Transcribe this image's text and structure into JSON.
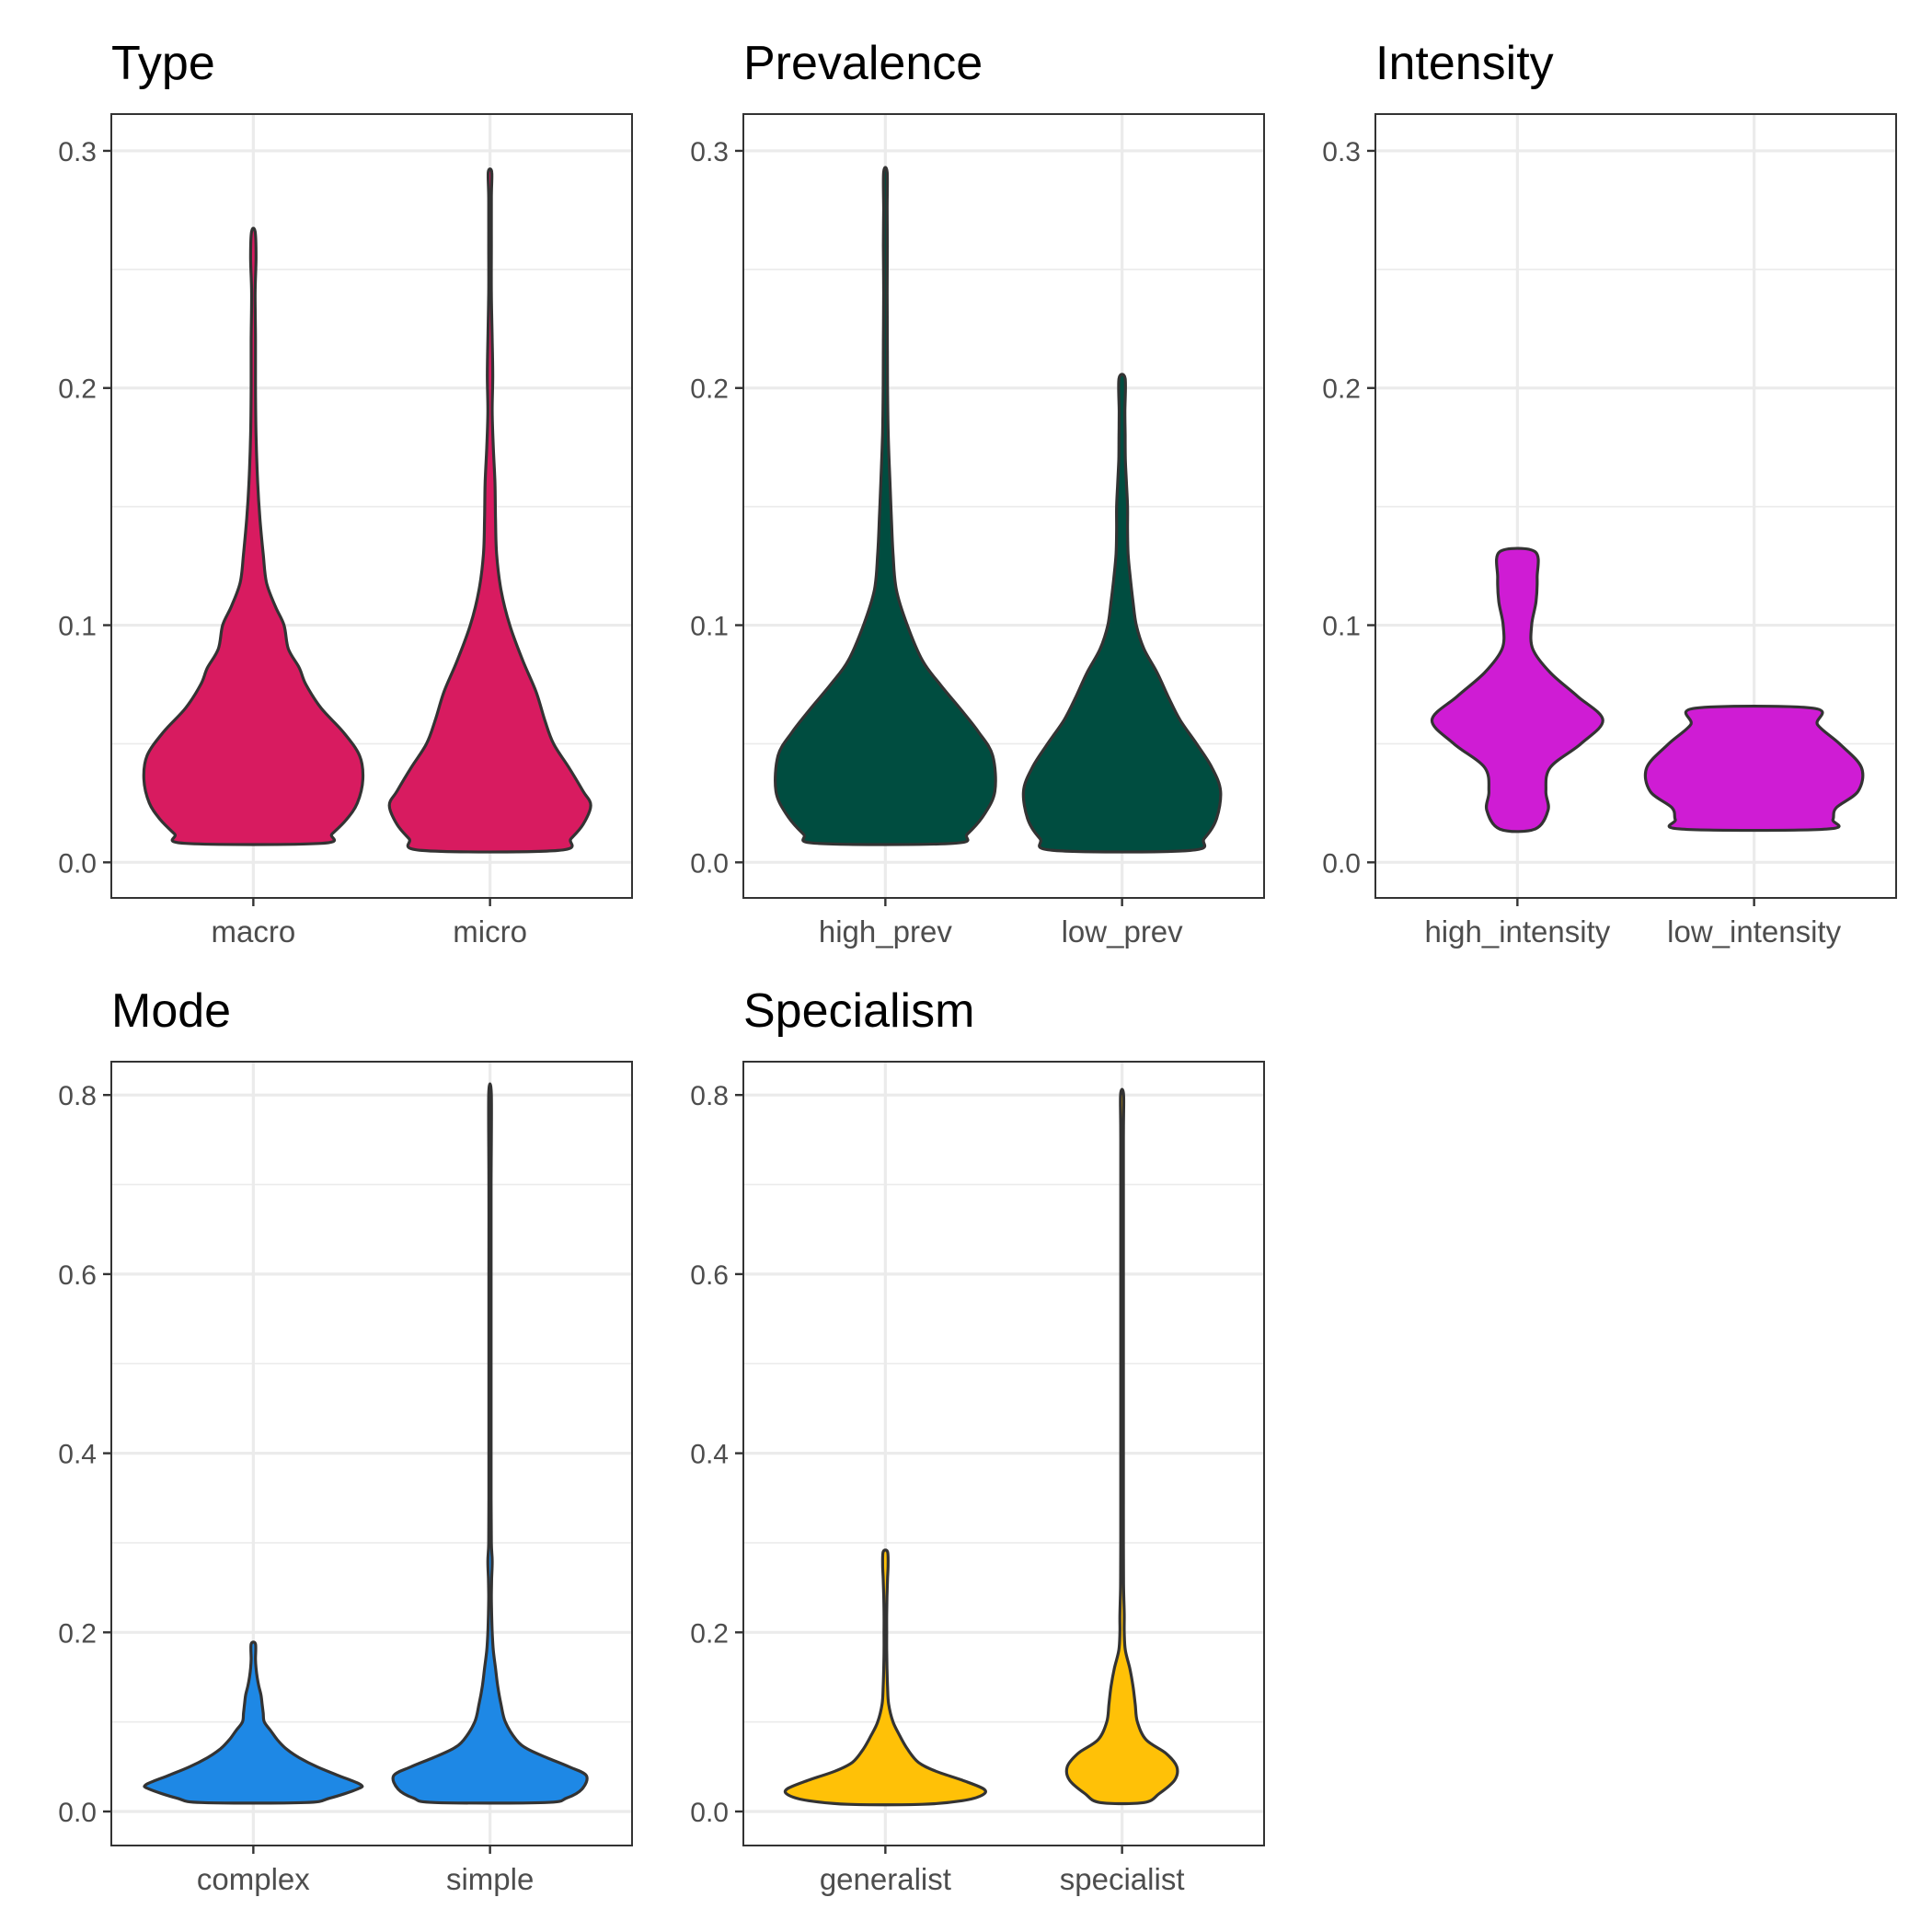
{
  "chart_data": [
    {
      "type": "violin",
      "title": "Type",
      "ylim": [
        -0.015,
        0.3155
      ],
      "yticks": [
        0.0,
        0.1,
        0.2,
        0.3
      ],
      "ytick_labels": [
        "0.0",
        "0.1",
        "0.2",
        "0.3"
      ],
      "fill": "#d81b60",
      "categories": [
        "macro",
        "micro"
      ],
      "violins": [
        {
          "name": "macro",
          "ymin": 0.008,
          "ymax": 0.266,
          "profile": [
            [
              0.008,
              0.62
            ],
            [
              0.012,
              0.72
            ],
            [
              0.018,
              0.85
            ],
            [
              0.025,
              0.95
            ],
            [
              0.035,
              1.0
            ],
            [
              0.045,
              0.97
            ],
            [
              0.055,
              0.82
            ],
            [
              0.065,
              0.62
            ],
            [
              0.075,
              0.48
            ],
            [
              0.082,
              0.42
            ],
            [
              0.09,
              0.32
            ],
            [
              0.1,
              0.28
            ],
            [
              0.108,
              0.2
            ],
            [
              0.118,
              0.12
            ],
            [
              0.13,
              0.09
            ],
            [
              0.145,
              0.06
            ],
            [
              0.16,
              0.04
            ],
            [
              0.18,
              0.025
            ],
            [
              0.2,
              0.02
            ],
            [
              0.22,
              0.02
            ],
            [
              0.24,
              0.016
            ],
            [
              0.255,
              0.025
            ],
            [
              0.266,
              0.016
            ]
          ]
        },
        {
          "name": "micro",
          "ymin": 0.005,
          "ymax": 0.291,
          "profile": [
            [
              0.005,
              0.62
            ],
            [
              0.01,
              0.74
            ],
            [
              0.016,
              0.85
            ],
            [
              0.024,
              0.92
            ],
            [
              0.03,
              0.85
            ],
            [
              0.04,
              0.72
            ],
            [
              0.05,
              0.58
            ],
            [
              0.06,
              0.5
            ],
            [
              0.072,
              0.42
            ],
            [
              0.085,
              0.3
            ],
            [
              0.1,
              0.18
            ],
            [
              0.115,
              0.1
            ],
            [
              0.13,
              0.06
            ],
            [
              0.145,
              0.05
            ],
            [
              0.16,
              0.045
            ],
            [
              0.175,
              0.03
            ],
            [
              0.19,
              0.02
            ],
            [
              0.205,
              0.025
            ],
            [
              0.22,
              0.02
            ],
            [
              0.24,
              0.012
            ],
            [
              0.26,
              0.012
            ],
            [
              0.28,
              0.012
            ],
            [
              0.291,
              0.016
            ]
          ]
        }
      ]
    },
    {
      "type": "violin",
      "title": "Prevalence",
      "ylim": [
        -0.015,
        0.3155
      ],
      "yticks": [
        0.0,
        0.1,
        0.2,
        0.3
      ],
      "ytick_labels": [
        "0.0",
        "0.1",
        "0.2",
        "0.3"
      ],
      "fill": "#004d40",
      "categories": [
        "high_prev",
        "low_prev"
      ],
      "violins": [
        {
          "name": "high_prev",
          "ymin": 0.008,
          "ymax": 0.291,
          "profile": [
            [
              0.008,
              0.62
            ],
            [
              0.012,
              0.75
            ],
            [
              0.02,
              0.9
            ],
            [
              0.03,
              1.0
            ],
            [
              0.045,
              0.98
            ],
            [
              0.055,
              0.85
            ],
            [
              0.065,
              0.68
            ],
            [
              0.075,
              0.5
            ],
            [
              0.085,
              0.34
            ],
            [
              0.1,
              0.2
            ],
            [
              0.115,
              0.1
            ],
            [
              0.13,
              0.07
            ],
            [
              0.145,
              0.055
            ],
            [
              0.16,
              0.042
            ],
            [
              0.18,
              0.026
            ],
            [
              0.2,
              0.02
            ],
            [
              0.22,
              0.018
            ],
            [
              0.24,
              0.016
            ],
            [
              0.26,
              0.018
            ],
            [
              0.275,
              0.016
            ],
            [
              0.291,
              0.016
            ]
          ]
        },
        {
          "name": "low_prev",
          "ymin": 0.005,
          "ymax": 0.204,
          "profile": [
            [
              0.005,
              0.62
            ],
            [
              0.01,
              0.75
            ],
            [
              0.018,
              0.86
            ],
            [
              0.03,
              0.9
            ],
            [
              0.04,
              0.82
            ],
            [
              0.05,
              0.68
            ],
            [
              0.06,
              0.53
            ],
            [
              0.07,
              0.42
            ],
            [
              0.08,
              0.32
            ],
            [
              0.09,
              0.2
            ],
            [
              0.1,
              0.13
            ],
            [
              0.11,
              0.1
            ],
            [
              0.12,
              0.075
            ],
            [
              0.13,
              0.055
            ],
            [
              0.14,
              0.05
            ],
            [
              0.15,
              0.05
            ],
            [
              0.16,
              0.04
            ],
            [
              0.17,
              0.03
            ],
            [
              0.18,
              0.028
            ],
            [
              0.19,
              0.026
            ],
            [
              0.204,
              0.028
            ]
          ]
        }
      ]
    },
    {
      "type": "violin",
      "title": "Intensity",
      "ylim": [
        -0.015,
        0.3155
      ],
      "yticks": [
        0.0,
        0.1,
        0.2,
        0.3
      ],
      "ytick_labels": [
        "0.0",
        "0.1",
        "0.2",
        "0.3"
      ],
      "fill": "#cf1cd4",
      "categories": [
        "high_intensity",
        "low_intensity"
      ],
      "violins": [
        {
          "name": "high_intensity",
          "ymin": 0.014,
          "ymax": 0.131,
          "profile": [
            [
              0.014,
              0.16
            ],
            [
              0.022,
              0.28
            ],
            [
              0.03,
              0.26
            ],
            [
              0.04,
              0.3
            ],
            [
              0.05,
              0.58
            ],
            [
              0.06,
              0.78
            ],
            [
              0.07,
              0.55
            ],
            [
              0.08,
              0.3
            ],
            [
              0.09,
              0.14
            ],
            [
              0.1,
              0.13
            ],
            [
              0.11,
              0.17
            ],
            [
              0.12,
              0.18
            ],
            [
              0.131,
              0.16
            ]
          ]
        },
        {
          "name": "low_intensity",
          "ymin": 0.014,
          "ymax": 0.065,
          "profile": [
            [
              0.014,
              0.66
            ],
            [
              0.018,
              0.72
            ],
            [
              0.023,
              0.75
            ],
            [
              0.03,
              0.95
            ],
            [
              0.04,
              0.98
            ],
            [
              0.05,
              0.78
            ],
            [
              0.058,
              0.58
            ],
            [
              0.065,
              0.54
            ]
          ]
        }
      ]
    },
    {
      "type": "violin",
      "title": "Mode",
      "ylim": [
        -0.038,
        0.8372
      ],
      "yticks": [
        0.0,
        0.2,
        0.4,
        0.6,
        0.8
      ],
      "ytick_labels": [
        "0.0",
        "0.2",
        "0.4",
        "0.6",
        "0.8"
      ],
      "fill": "#1e88e5",
      "categories": [
        "complex",
        "simple"
      ],
      "violins": [
        {
          "name": "complex",
          "ymin": 0.01,
          "ymax": 0.187,
          "profile": [
            [
              0.01,
              0.47
            ],
            [
              0.015,
              0.7
            ],
            [
              0.025,
              0.95
            ],
            [
              0.03,
              0.98
            ],
            [
              0.04,
              0.78
            ],
            [
              0.05,
              0.58
            ],
            [
              0.06,
              0.42
            ],
            [
              0.07,
              0.3
            ],
            [
              0.08,
              0.22
            ],
            [
              0.09,
              0.16
            ],
            [
              0.1,
              0.1
            ],
            [
              0.11,
              0.09
            ],
            [
              0.12,
              0.08
            ],
            [
              0.13,
              0.07
            ],
            [
              0.14,
              0.05
            ],
            [
              0.15,
              0.035
            ],
            [
              0.16,
              0.025
            ],
            [
              0.17,
              0.02
            ],
            [
              0.187,
              0.02
            ]
          ]
        },
        {
          "name": "simple",
          "ymin": 0.01,
          "ymax": 0.8,
          "profile": [
            [
              0.01,
              0.5
            ],
            [
              0.015,
              0.7
            ],
            [
              0.025,
              0.84
            ],
            [
              0.04,
              0.88
            ],
            [
              0.05,
              0.72
            ],
            [
              0.06,
              0.52
            ],
            [
              0.07,
              0.34
            ],
            [
              0.08,
              0.24
            ],
            [
              0.1,
              0.14
            ],
            [
              0.12,
              0.1
            ],
            [
              0.14,
              0.07
            ],
            [
              0.16,
              0.05
            ],
            [
              0.18,
              0.03
            ],
            [
              0.2,
              0.02
            ],
            [
              0.22,
              0.015
            ],
            [
              0.24,
              0.012
            ],
            [
              0.26,
              0.015
            ],
            [
              0.28,
              0.02
            ],
            [
              0.3,
              0.012
            ],
            [
              0.35,
              0.01
            ],
            [
              0.45,
              0.01
            ],
            [
              0.6,
              0.01
            ],
            [
              0.7,
              0.01
            ],
            [
              0.8,
              0.012
            ]
          ]
        }
      ]
    },
    {
      "type": "violin",
      "title": "Specialism",
      "ylim": [
        -0.038,
        0.8372
      ],
      "yticks": [
        0.0,
        0.2,
        0.4,
        0.6,
        0.8
      ],
      "ytick_labels": [
        "0.0",
        "0.2",
        "0.4",
        "0.6",
        "0.8"
      ],
      "fill": "#ffc107",
      "categories": [
        "generalist",
        "specialist"
      ],
      "violins": [
        {
          "name": "generalist",
          "ymin": 0.008,
          "ymax": 0.29,
          "profile": [
            [
              0.008,
              0.34
            ],
            [
              0.012,
              0.7
            ],
            [
              0.018,
              0.88
            ],
            [
              0.025,
              0.9
            ],
            [
              0.035,
              0.7
            ],
            [
              0.045,
              0.46
            ],
            [
              0.055,
              0.3
            ],
            [
              0.07,
              0.2
            ],
            [
              0.085,
              0.13
            ],
            [
              0.1,
              0.07
            ],
            [
              0.12,
              0.03
            ],
            [
              0.14,
              0.02
            ],
            [
              0.16,
              0.015
            ],
            [
              0.18,
              0.012
            ],
            [
              0.2,
              0.012
            ],
            [
              0.22,
              0.012
            ],
            [
              0.24,
              0.015
            ],
            [
              0.26,
              0.02
            ],
            [
              0.275,
              0.025
            ],
            [
              0.29,
              0.02
            ]
          ]
        },
        {
          "name": "specialist",
          "ymin": 0.01,
          "ymax": 0.8,
          "profile": [
            [
              0.01,
              0.2
            ],
            [
              0.02,
              0.34
            ],
            [
              0.035,
              0.48
            ],
            [
              0.05,
              0.5
            ],
            [
              0.065,
              0.4
            ],
            [
              0.08,
              0.22
            ],
            [
              0.1,
              0.14
            ],
            [
              0.12,
              0.12
            ],
            [
              0.14,
              0.1
            ],
            [
              0.16,
              0.07
            ],
            [
              0.18,
              0.03
            ],
            [
              0.2,
              0.02
            ],
            [
              0.22,
              0.02
            ],
            [
              0.25,
              0.014
            ],
            [
              0.3,
              0.012
            ],
            [
              0.4,
              0.012
            ],
            [
              0.6,
              0.012
            ],
            [
              0.75,
              0.012
            ],
            [
              0.8,
              0.014
            ]
          ]
        }
      ]
    }
  ]
}
